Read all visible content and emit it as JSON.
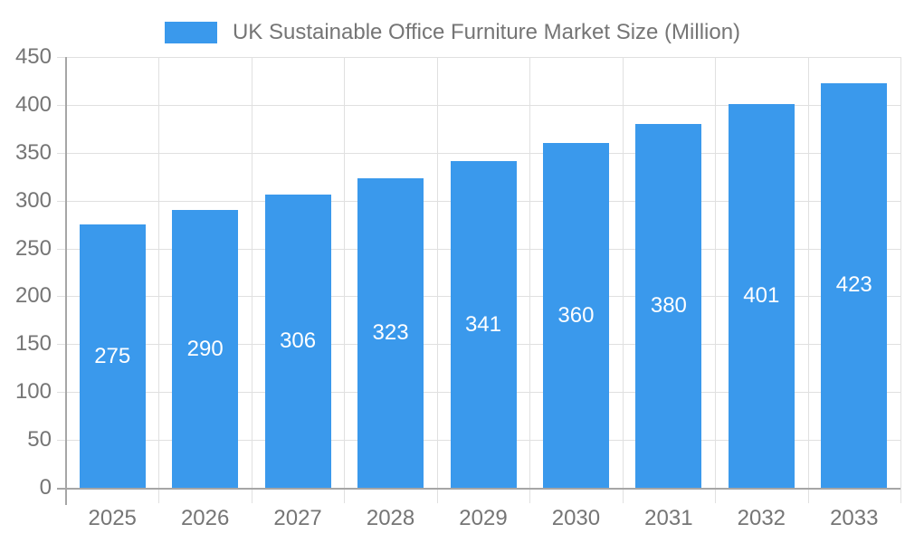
{
  "legend": {
    "label": "UK Sustainable Office Furniture Market Size (Million)"
  },
  "chart_data": {
    "type": "bar",
    "title": "UK Sustainable Office Furniture Market Size (Million)",
    "categories": [
      "2025",
      "2026",
      "2027",
      "2028",
      "2029",
      "2030",
      "2031",
      "2032",
      "2033"
    ],
    "values": [
      275,
      290,
      306,
      323,
      341,
      360,
      380,
      401,
      423
    ],
    "xlabel": "",
    "ylabel": "",
    "ylim": [
      0,
      450
    ],
    "ytick_step": 50,
    "yticks": [
      0,
      50,
      100,
      150,
      200,
      250,
      300,
      350,
      400,
      450
    ],
    "grid": true,
    "legend_position": "top-center",
    "bar_label_position": "inside-center",
    "colors": {
      "bar": "#3a99ec",
      "grid": "#e0e0e0",
      "axis": "#a6a6a6",
      "tick_label": "#757575",
      "bar_label": "#ffffff",
      "background": "#ffffff"
    }
  }
}
